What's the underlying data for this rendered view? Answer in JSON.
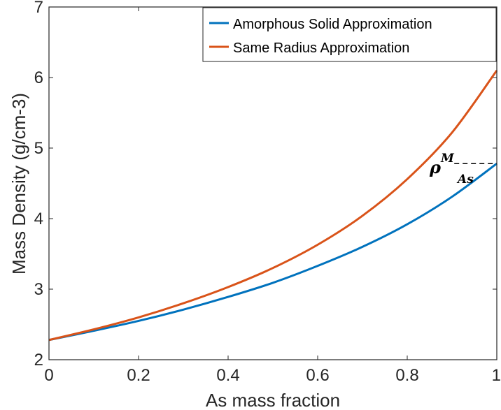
{
  "chart_data": {
    "type": "line",
    "xlabel": "As mass fraction",
    "ylabel": "Mass Density (g/cm-3)",
    "xlim": [
      0,
      1
    ],
    "ylim": [
      2,
      7
    ],
    "xticks": [
      0,
      0.2,
      0.4,
      0.6,
      0.8,
      1
    ],
    "yticks": [
      2,
      3,
      4,
      5,
      6,
      7
    ],
    "xtick_labels": [
      "0",
      "0.2",
      "0.4",
      "0.6",
      "0.8",
      "1"
    ],
    "ytick_labels": [
      "2",
      "3",
      "4",
      "5",
      "6",
      "7"
    ],
    "grid": false,
    "legend_position": "top-right",
    "x": [
      0,
      0.1,
      0.2,
      0.3,
      0.4,
      0.5,
      0.6,
      0.7,
      0.8,
      0.9,
      1.0
    ],
    "series": [
      {
        "name": "Amorphous Solid Approximation",
        "color": "#0072BD",
        "values": [
          2.28,
          2.41,
          2.55,
          2.71,
          2.89,
          3.09,
          3.33,
          3.6,
          3.92,
          4.31,
          4.78
        ]
      },
      {
        "name": "Same Radius Approximation",
        "color": "#D95319",
        "values": [
          2.28,
          2.43,
          2.6,
          2.8,
          3.03,
          3.3,
          3.63,
          4.04,
          4.56,
          5.22,
          6.1
        ]
      }
    ],
    "annotation": {
      "main": "ρ",
      "superscript": "M",
      "subscript": "As",
      "reference_value": 4.78,
      "reference_x_range": [
        0.905,
        1.0
      ],
      "line_style": "dashed"
    }
  }
}
